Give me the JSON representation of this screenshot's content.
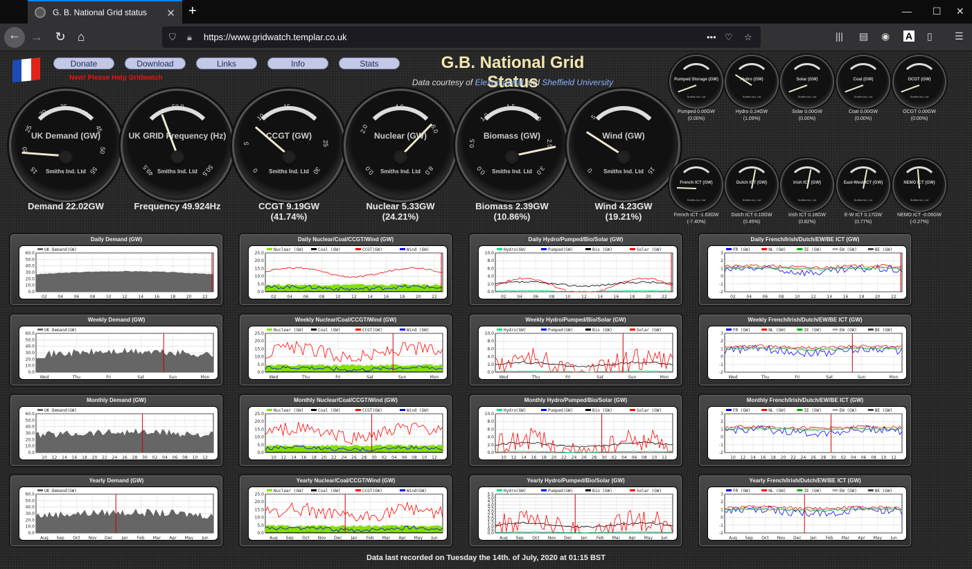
{
  "browser": {
    "tab_title": "G. B. National Grid status",
    "url": "https://www.gridwatch.templar.co.uk"
  },
  "header": {
    "buttons": [
      "Donate",
      "Download",
      "Links",
      "Info",
      "Stats"
    ],
    "new_help": "New! Please Help Gridwatch",
    "title": "G.B. National Grid Status",
    "courtesy_prefix": "Data courtesy of",
    "courtesy_link1": "Elexon portal",
    "courtesy_and": "and",
    "courtesy_link2": "Sheffield University"
  },
  "big_gauges": [
    {
      "name": "UK Demand (GW)",
      "maker": "Smiths Ind. Ltd",
      "reading1": "Demand 22.02GW",
      "reading2": "",
      "ticks": [
        "15",
        "20",
        "25",
        "30",
        "35",
        "40",
        "45",
        "50",
        "55"
      ],
      "value_frac": 0.17
    },
    {
      "name": "UK GRID Frequency (Hz)",
      "maker": "Smiths Ind. Ltd",
      "reading1": "Frequency 49.924Hz",
      "reading2": "",
      "ticks": [
        "49.5",
        "50.0",
        "50.5"
      ],
      "value_frac": 0.42
    },
    {
      "name": "CCGT (GW)",
      "maker": "Smiths Ind. Ltd",
      "reading1": "CCGT 9.19GW",
      "reading2": "(41.74%)",
      "ticks": [
        "0",
        "5",
        "10",
        "15",
        "20",
        "25",
        "30"
      ],
      "value_frac": 0.31
    },
    {
      "name": "Nuclear (GW)",
      "maker": "Smiths Ind. Ltd",
      "reading1": "Nuclear 5.33GW",
      "reading2": "(24.21%)",
      "ticks": [
        "0.0",
        "2.0",
        "4.0",
        "6.0",
        "8.0"
      ],
      "value_frac": 0.67
    },
    {
      "name": "Biomass (GW)",
      "maker": "Smiths Ind. Ltd",
      "reading1": "Biomass 2.39GW",
      "reading2": "(10.86%)",
      "ticks": [
        "0.0",
        "0.5",
        "1.0",
        "1.5",
        "2.0",
        "2.5",
        "3.0"
      ],
      "value_frac": 0.8
    },
    {
      "name": "Wind (GW)",
      "maker": "Smiths Ind. Ltd",
      "reading1": "Wind 4.23GW",
      "reading2": "(19.21%)",
      "ticks": [
        "0",
        "5",
        "10",
        "15"
      ],
      "value_frac": 0.28
    }
  ],
  "small_gauges": [
    {
      "name": "Pumped Storage (GW)",
      "maker": "Smiths Ind. Ltd",
      "reading1": "Pumped 0.00GW",
      "reading2": "(0.00%)",
      "value_frac": 0.0
    },
    {
      "name": "Hydro (GW)",
      "maker": "Smiths Ind. Ltd",
      "reading1": "Hydro 0.24GW",
      "reading2": "(1.09%)",
      "value_frac": 0.24
    },
    {
      "name": "Solar (GW)",
      "maker": "Smiths Ind. Ltd",
      "reading1": "Solar 0.00GW",
      "reading2": "(0.00%)",
      "value_frac": 0.0
    },
    {
      "name": "Coal (GW)",
      "maker": "Smiths Ind. Ltd",
      "reading1": "Coal 0.00GW",
      "reading2": "(0.00%)",
      "value_frac": 0.0
    },
    {
      "name": "OCGT (GW)",
      "maker": "Smiths Ind. Ltd",
      "reading1": "OCGT 0.00GW",
      "reading2": "(0.00%)",
      "value_frac": 0.0
    },
    {
      "name": "French ICT (GW)",
      "maker": "Smiths Ind. Ltd",
      "reading1": "French ICT -1.63GW",
      "reading2": "(-7.40%)",
      "value_frac": 0.1
    },
    {
      "name": "Dutch ICT (GW)",
      "maker": "Smiths Ind. Ltd",
      "reading1": "Dutch ICT 0.10GW",
      "reading2": "(0.45%)",
      "value_frac": 0.55
    },
    {
      "name": "Irish ICT (GW)",
      "maker": "Smiths Ind. Ltd",
      "reading1": "Irish ICT 0.18GW",
      "reading2": "(0.82%)",
      "value_frac": 0.55
    },
    {
      "name": "East-West ICT (GW)",
      "maker": "Smiths Ind. Ltd",
      "reading1": "E-W ICT 0.17GW",
      "reading2": "(0.77%)",
      "value_frac": 0.55
    },
    {
      "name": "NEMO ICT (GW)",
      "maker": "Smiths Ind. Ltd",
      "reading1": "NEMO ICT -0.06GW",
      "reading2": "(-0.27%)",
      "value_frac": 0.48
    }
  ],
  "panels": [
    {
      "title": "Daily Demand (GW)",
      "legend": [
        "UK Demand(GW)"
      ],
      "xticks": [
        "02",
        "04",
        "06",
        "08",
        "10",
        "12",
        "14",
        "16",
        "18",
        "20",
        "22"
      ],
      "yticks": [
        "60.0",
        "50.0",
        "40.0",
        "30.0",
        "20.0",
        "10.0",
        "0.0"
      ]
    },
    {
      "title": "Daily Nuclear/Coal/CCGT/Wind (GW)",
      "legend": [
        "Nuclear (GW)",
        "Coal (GW)",
        "CCGT(GW)",
        "Wind (GW)"
      ],
      "xticks": [
        "02",
        "04",
        "06",
        "08",
        "10",
        "12",
        "14",
        "16",
        "18",
        "20",
        "22"
      ],
      "yticks": [
        "25.0",
        "20.0",
        "15.0",
        "10.0",
        "5.0",
        "0.0"
      ]
    },
    {
      "title": "Daily Hydro/Pumped/Bio/Solar (GW)",
      "legend": [
        "Hydro(GW)",
        "Pumped(GW)",
        "Bio (GW)",
        "Solar (GW)"
      ],
      "xticks": [
        "02",
        "04",
        "06",
        "08",
        "10",
        "12",
        "14",
        "16",
        "18",
        "20",
        "22"
      ],
      "yticks": [
        "10.0",
        "8.0",
        "6.0",
        "4.0",
        "2.0",
        "0.0"
      ]
    },
    {
      "title": "Daily French/Irish/Dutch/EW/BE ICT (GW)",
      "legend": [
        "FR (GW)",
        "NL (GW)",
        "IE (GW)",
        "EW (GW)",
        "BE (GW)"
      ],
      "xticks": [
        "02",
        "04",
        "06",
        "08",
        "10",
        "12",
        "14",
        "16",
        "18",
        "20",
        "22"
      ],
      "yticks": [
        "3",
        "2",
        "1",
        "0",
        "-1",
        "-2"
      ]
    },
    {
      "title": "Weekly Demand (GW)",
      "legend": [
        "UK Demand(GW)"
      ],
      "xticks": [
        "Wed",
        "Thu",
        "Fri",
        "Sat",
        "Sun",
        "Mon"
      ],
      "yticks": [
        "60.0",
        "50.0",
        "40.0",
        "30.0",
        "20.0",
        "10.0",
        "0.0"
      ]
    },
    {
      "title": "Weekly Nuclear/Coal/CCGT/Wind (GW)",
      "legend": [
        "Nuclear (GW)",
        "Coal (GW)",
        "CCGT(GW)",
        "Wind (GW)"
      ],
      "xticks": [
        "Wed",
        "Thu",
        "Fri",
        "Sat",
        "Sun",
        "Mon"
      ],
      "yticks": [
        "25.0",
        "20.0",
        "15.0",
        "10.0",
        "5.0",
        "0.0"
      ]
    },
    {
      "title": "Weekly Hydro/Pumped/Bio/Solar (GW)",
      "legend": [
        "Hydro(GW)",
        "Pumped(GW)",
        "Bio (GW)",
        "Solar (GW)"
      ],
      "xticks": [
        "Wed",
        "Thu",
        "Fri",
        "Sat",
        "Sun",
        "Mon"
      ],
      "yticks": [
        "10.0",
        "8.0",
        "6.0",
        "4.0",
        "2.0",
        "0.0"
      ]
    },
    {
      "title": "Weekly French/Irish/Dutch/EW/BE ICT (GW)",
      "legend": [
        "FR (GW)",
        "NL (GW)",
        "IE (GW)",
        "EW (GW)",
        "BE (GW)"
      ],
      "xticks": [
        "Wed",
        "Thu",
        "Fri",
        "Sat",
        "Sun",
        "Mon"
      ],
      "yticks": [
        "3",
        "2",
        "1",
        "0",
        "-1",
        "-2"
      ]
    },
    {
      "title": "Monthly Demand (GW)",
      "legend": [
        "UK Demand(GW)"
      ],
      "xticks": [
        "10",
        "12",
        "14",
        "16",
        "18",
        "20",
        "22",
        "24",
        "26",
        "28",
        "30",
        "02",
        "04",
        "06",
        "08",
        "10",
        "12"
      ],
      "yticks": [
        "60.0",
        "50.0",
        "40.0",
        "30.0",
        "20.0",
        "10.0",
        "0.0"
      ]
    },
    {
      "title": "Monthly Nuclear/Coal/CCGT/Wind (GW)",
      "legend": [
        "Nuclear (GW)",
        "Coal (GW)",
        "CCGT(GW)",
        "Wind (GW)"
      ],
      "xticks": [
        "10",
        "12",
        "14",
        "16",
        "18",
        "20",
        "22",
        "24",
        "26",
        "28",
        "30",
        "02",
        "04",
        "06",
        "08",
        "10",
        "12"
      ],
      "yticks": [
        "25.0",
        "20.0",
        "15.0",
        "10.0",
        "5.0",
        "0.0"
      ]
    },
    {
      "title": "Monthly Hydro/Pumped/Bio/Solar (GW)",
      "legend": [
        "Hydro(GW)",
        "Pumped(GW)",
        "Bio (GW)",
        "Solar (GW)"
      ],
      "xticks": [
        "10",
        "12",
        "14",
        "16",
        "18",
        "20",
        "22",
        "24",
        "26",
        "28",
        "30",
        "02",
        "04",
        "06",
        "08",
        "10",
        "12"
      ],
      "yticks": [
        "10.0",
        "8.0",
        "6.0",
        "4.0",
        "2.0",
        "0.0"
      ]
    },
    {
      "title": "Monthly French/Irish/Dutch/EW/BE ICT (GW)",
      "legend": [
        "FR (GW)",
        "NL (GW)",
        "IE (GW)",
        "EW (GW)",
        "BE (GW)"
      ],
      "xticks": [
        "10",
        "12",
        "14",
        "16",
        "18",
        "20",
        "22",
        "24",
        "26",
        "28",
        "30",
        "02",
        "04",
        "06",
        "08",
        "10",
        "12"
      ],
      "yticks": [
        "3",
        "2",
        "1",
        "0",
        "-1",
        "-2"
      ]
    },
    {
      "title": "Yearly Demand (GW)",
      "legend": [
        "UK Demand(GW)"
      ],
      "xticks": [
        "Aug",
        "Sep",
        "Oct",
        "Nov",
        "Dec",
        "Jan",
        "Feb",
        "Mar",
        "Apr",
        "May",
        "Jun"
      ],
      "yticks": [
        "60.0",
        "50.0",
        "40.0",
        "30.0",
        "20.0",
        "10.0",
        "0.0"
      ]
    },
    {
      "title": "Yearly Nuclear/Coal/CCGT/Wind (GW)",
      "legend": [
        "Nuclear (GW)",
        "Coal (GW)",
        "CCGT(GW)",
        "Wind(GW)"
      ],
      "xticks": [
        "Aug",
        "Sep",
        "Oct",
        "Nov",
        "Dec",
        "Jan",
        "Feb",
        "Mar",
        "Apr",
        "May",
        "Jun"
      ],
      "yticks": [
        "25.0",
        "20.0",
        "15.0",
        "10.0",
        "5.0",
        "0.0"
      ]
    },
    {
      "title": "Yearly Hydro/Pumped/Bio/Solar (GW)",
      "legend": [
        "Hydro(GW)",
        "Pumped(GW)",
        "Bio (GW)",
        "Solar (GW)"
      ],
      "xticks": [
        "Aug",
        "Sep",
        "Oct",
        "Nov",
        "Dec",
        "Jan",
        "Feb",
        "Mar",
        "Apr",
        "May",
        "Jun"
      ],
      "yticks": [
        "5.5",
        "5.0",
        "4.5",
        "4.0",
        "3.5",
        "3.0",
        "2.5",
        "2.0",
        "1.5",
        "1.0",
        "0.5",
        "0.0"
      ]
    },
    {
      "title": "Yearly French/Irish/Dutch/EW/BE ICT (GW)",
      "legend": [
        "FR (GW)",
        "NL (GW)",
        "IE (GW)",
        "EW (GW)",
        "BE (GW)"
      ],
      "xticks": [
        "Aug",
        "Sep",
        "Oct",
        "Nov",
        "Dec",
        "Jan",
        "Feb",
        "Mar",
        "Apr",
        "May",
        "Jun"
      ],
      "yticks": [
        "3",
        "2",
        "1",
        "0",
        "-1",
        "-2"
      ]
    }
  ],
  "footer": "Data last recorded on Tuesday the 14th. of July, 2020 at 01:15 BST",
  "colors": {
    "nuclear": "#84e000",
    "coal": "#000000",
    "ccgt": "#ff0000",
    "wind": "#0000ff",
    "hydro": "#00e080",
    "ie": "#00a000",
    "ew": "#a0a0a0",
    "be": "#404040",
    "demand_fill": "#666666"
  }
}
